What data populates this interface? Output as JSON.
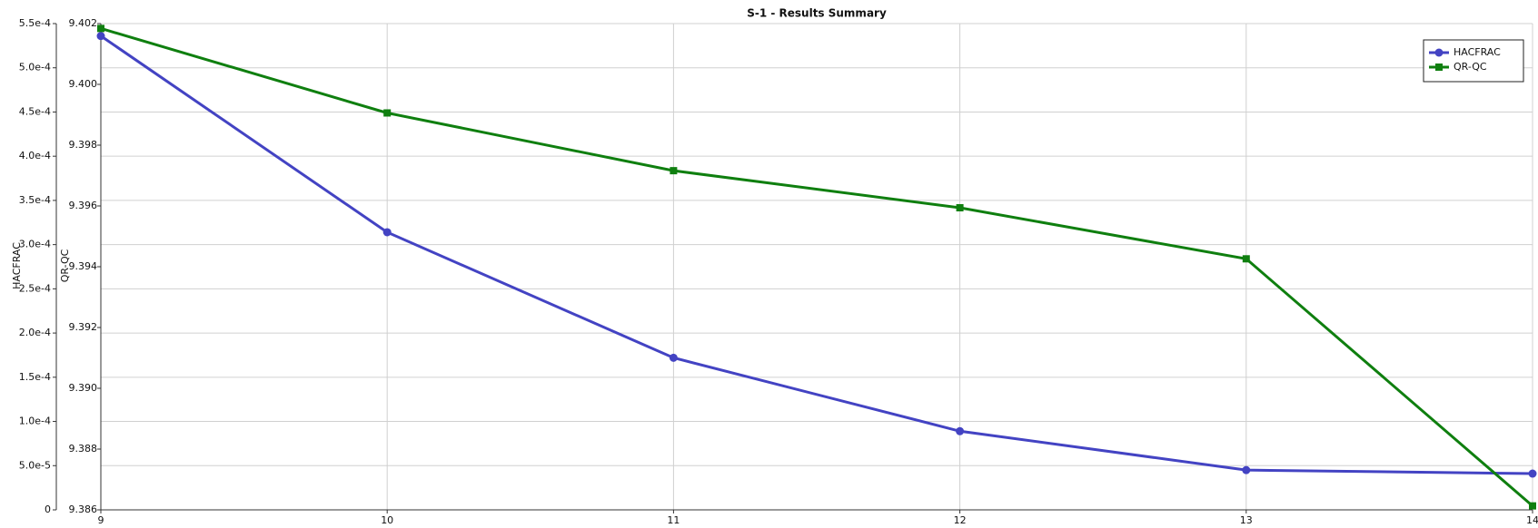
{
  "chart_data": {
    "type": "line",
    "title": "S-1 - Results Summary",
    "ylabel": "HACFRAC",
    "y2label": "QR-QC",
    "x": [
      9,
      10,
      11,
      12,
      13,
      14
    ],
    "xlim": [
      9,
      14
    ],
    "xticks": [
      9,
      10,
      11,
      12,
      13,
      14
    ],
    "ylim": [
      0,
      0.00055
    ],
    "yticks": [
      0,
      {
        "value": 5e-05,
        "label": "5.0e-5"
      },
      {
        "value": 0.0001,
        "label": "1.0e-4"
      },
      {
        "value": 0.00015,
        "label": "1.5e-4"
      },
      {
        "value": 0.0002,
        "label": "2.0e-4"
      },
      {
        "value": 0.00025,
        "label": "2.5e-4"
      },
      {
        "value": 0.0003,
        "label": "3.0e-4"
      },
      {
        "value": 0.00035,
        "label": "3.5e-4"
      },
      {
        "value": 0.0004,
        "label": "4.0e-4"
      },
      {
        "value": 0.00045,
        "label": "4.5e-4"
      },
      {
        "value": 0.0005,
        "label": "5.0e-4"
      },
      {
        "value": 0.00055,
        "label": "5.5e-4"
      }
    ],
    "y2lim": [
      9.386,
      9.402
    ],
    "y2ticks": [
      9.386,
      9.388,
      {
        "value": 9.39,
        "label": "9.390"
      },
      9.392,
      9.394,
      9.396,
      9.398,
      {
        "value": 9.4,
        "label": "9.400"
      },
      9.402
    ],
    "grid": true,
    "legend": "upper right",
    "series": [
      {
        "name": "HACFRAC",
        "color": "#4343c3",
        "marker": "circle",
        "values": [
          0.000536,
          0.000314,
          0.000172,
          8.9e-05,
          4.5e-05,
          4.1e-05
        ]
      },
      {
        "name": "QR-QC",
        "color": "#0f7f0f",
        "marker": "square",
        "axis": "y2",
        "values": [
          9.40184,
          9.39906,
          9.39716,
          9.39594,
          9.39426,
          9.38613
        ]
      }
    ]
  }
}
